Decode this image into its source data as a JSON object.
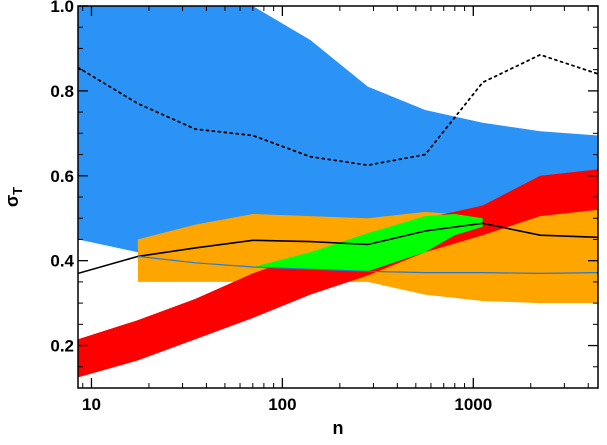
{
  "chart_data": {
    "type": "area",
    "title": "",
    "xlabel": "n",
    "ylabel_symbol": "σ",
    "ylabel_subscript": "T",
    "x_scale": "log",
    "xlim": [
      8.5,
      4500
    ],
    "ylim": [
      0.1,
      1.0
    ],
    "x_ticks": [
      {
        "value": 10,
        "label": "10"
      },
      {
        "value": 100,
        "label": "100"
      },
      {
        "value": 1000,
        "label": "1000"
      }
    ],
    "y_ticks": [
      {
        "value": 0.2,
        "label": "0.2"
      },
      {
        "value": 0.4,
        "label": "0.4"
      },
      {
        "value": 0.6,
        "label": "0.6"
      },
      {
        "value": 0.8,
        "label": "0.8"
      },
      {
        "value": 1.0,
        "label": "1.0"
      }
    ],
    "grid": false,
    "legend": "none",
    "bands": [
      {
        "color": "#2a93f5",
        "x": [
          8.5,
          17.5,
          35,
          70,
          140,
          280,
          560,
          1120,
          2240,
          4500
        ],
        "upper": [
          1.02,
          1.02,
          1.02,
          1.0,
          0.92,
          0.81,
          0.755,
          0.725,
          0.705,
          0.695
        ],
        "lower": [
          0.45,
          0.42,
          0.4,
          0.385,
          0.38,
          0.37,
          0.37,
          0.37,
          0.37,
          0.37
        ]
      },
      {
        "color": "#ffa500",
        "x": [
          17.5,
          35,
          70,
          140,
          280,
          560,
          1120,
          2240,
          4500
        ],
        "upper": [
          0.45,
          0.485,
          0.51,
          0.505,
          0.5,
          0.515,
          0.505,
          0.535,
          0.565
        ],
        "lower": [
          0.35,
          0.35,
          0.35,
          0.35,
          0.35,
          0.32,
          0.305,
          0.3,
          0.3
        ]
      },
      {
        "color": "#ff0000",
        "x": [
          8.5,
          17.5,
          35,
          70,
          140,
          280,
          560,
          1120,
          2240,
          4500
        ],
        "upper": [
          0.215,
          0.26,
          0.31,
          0.37,
          0.42,
          0.46,
          0.5,
          0.53,
          0.6,
          0.615
        ],
        "lower": [
          0.125,
          0.165,
          0.215,
          0.265,
          0.32,
          0.365,
          0.42,
          0.46,
          0.505,
          0.52
        ]
      },
      {
        "color": "#00ff00",
        "x": [
          70,
          140,
          280,
          560,
          800,
          1120
        ],
        "upper": [
          0.385,
          0.42,
          0.465,
          0.505,
          0.51,
          0.5
        ],
        "lower": [
          0.385,
          0.38,
          0.375,
          0.42,
          0.46,
          0.48
        ]
      }
    ],
    "series": [
      {
        "style": "solid",
        "color": "#000000",
        "x": [
          8.5,
          17.5,
          35,
          70,
          140,
          280,
          560,
          1120,
          2240,
          4500
        ],
        "y": [
          0.37,
          0.41,
          0.43,
          0.448,
          0.445,
          0.438,
          0.47,
          0.488,
          0.46,
          0.455
        ]
      },
      {
        "style": "solid",
        "color": "#2b78c8",
        "x": [
          17.5,
          35,
          70,
          140,
          280,
          560,
          1120,
          2240,
          4500
        ],
        "y": [
          0.41,
          0.395,
          0.385,
          0.38,
          0.375,
          0.372,
          0.372,
          0.37,
          0.372
        ]
      },
      {
        "style": "dotted",
        "color": "#000000",
        "x": [
          8.5,
          17.5,
          35,
          70,
          140,
          280,
          560,
          1120,
          2240,
          4500
        ],
        "y": [
          0.855,
          0.77,
          0.71,
          0.695,
          0.645,
          0.625,
          0.65,
          0.82,
          0.885,
          0.84
        ]
      }
    ]
  }
}
